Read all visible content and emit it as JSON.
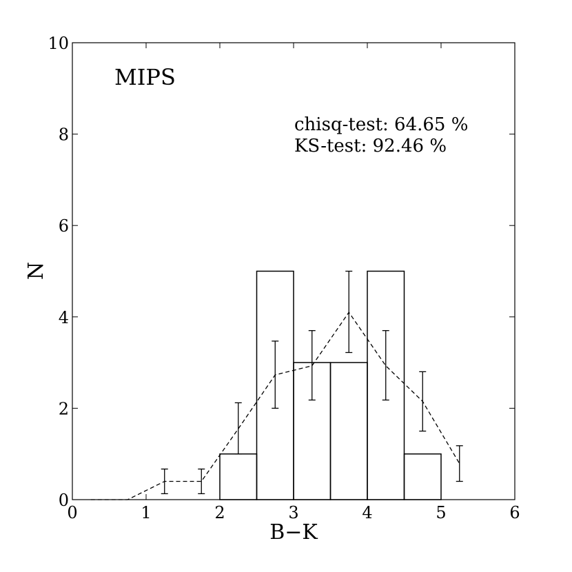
{
  "chart_data": {
    "type": "bar",
    "panel_label": "MIPS",
    "annotations": [
      "chisq-test: 64.65 %",
      "KS-test: 92.46 %"
    ],
    "xlabel": "B−K",
    "ylabel": "N",
    "xlim": [
      0,
      6
    ],
    "ylim": [
      0,
      10
    ],
    "x_ticks": [
      0,
      1,
      2,
      3,
      4,
      5,
      6
    ],
    "y_ticks": [
      0,
      2,
      4,
      6,
      8,
      10
    ],
    "histogram": {
      "bin_edges": [
        0,
        0.5,
        1,
        1.5,
        2,
        2.5,
        3,
        3.5,
        4,
        4.5,
        5,
        5.5,
        6
      ],
      "counts": [
        0,
        0,
        0,
        0,
        1,
        5,
        3,
        3,
        5,
        1,
        0,
        0
      ]
    },
    "expected": {
      "style": "dashed",
      "x": [
        0.25,
        0.75,
        1.25,
        1.75,
        2.25,
        2.75,
        3.25,
        3.75,
        4.25,
        4.75,
        5.25
      ],
      "y": [
        0,
        0,
        0.4,
        0.4,
        1.55,
        2.73,
        2.93,
        4.1,
        2.93,
        2.15,
        0.79
      ],
      "err_low": [
        null,
        null,
        0.13,
        0.13,
        1.0,
        2.0,
        2.18,
        3.22,
        2.18,
        1.5,
        0.4
      ],
      "err_high": [
        null,
        null,
        0.67,
        0.67,
        2.12,
        3.47,
        3.7,
        5.0,
        3.7,
        2.8,
        1.18
      ]
    },
    "grid": false
  }
}
